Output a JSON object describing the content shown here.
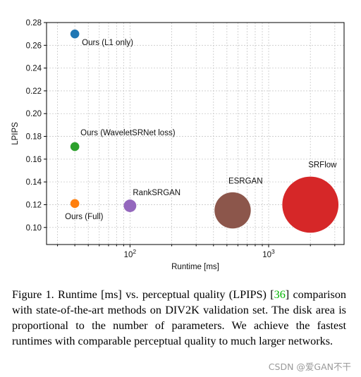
{
  "chart_data": {
    "type": "scatter",
    "title": "",
    "xlabel": "Runtime [ms]",
    "ylabel": "LPIPS",
    "x_scale": "log",
    "xlim": [
      25,
      3500
    ],
    "ylim": [
      0.085,
      0.28
    ],
    "x_ticks": [
      100,
      1000
    ],
    "x_tick_labels": [
      {
        "base": "10",
        "exp": "2"
      },
      {
        "base": "10",
        "exp": "3"
      }
    ],
    "y_ticks": [
      0.1,
      0.12,
      0.14,
      0.16,
      0.18,
      0.2,
      0.22,
      0.24,
      0.26,
      0.28
    ],
    "y_tick_labels": [
      "0.10",
      "0.12",
      "0.14",
      "0.16",
      "0.18",
      "0.20",
      "0.22",
      "0.24",
      "0.26",
      "0.28"
    ],
    "grid": true,
    "points": [
      {
        "label": "Ours (L1 only)",
        "x": 40,
        "y": 0.27,
        "color": "#1f77b4",
        "relative_size": 0.06
      },
      {
        "label": "Ours (WaveletSRNet loss)",
        "x": 40,
        "y": 0.171,
        "color": "#2ca02c",
        "relative_size": 0.06
      },
      {
        "label": "Ours (Full)",
        "x": 40,
        "y": 0.121,
        "color": "#ff7f0e",
        "relative_size": 0.06
      },
      {
        "label": "RankSRGAN",
        "x": 100,
        "y": 0.119,
        "color": "#9467bd",
        "relative_size": 0.12
      },
      {
        "label": "ESRGAN",
        "x": 550,
        "y": 0.115,
        "color": "#8c564b",
        "relative_size": 1.0
      },
      {
        "label": "SRFlow",
        "x": 2000,
        "y": 0.12,
        "color": "#d62728",
        "relative_size": 2.4
      }
    ]
  },
  "caption": {
    "prefix": "Figure 1. Runtime [ms] vs. perceptual quality (LPIPS) [",
    "ref": "36",
    "suffix": "] comparison with state-of-the-art methods on DIV2K validation set. The disk area is proportional to the number of parameters.  We achieve the fastest runtimes with comparable perceptual quality to much larger networks."
  },
  "watermark": "CSDN @爱GAN不干"
}
